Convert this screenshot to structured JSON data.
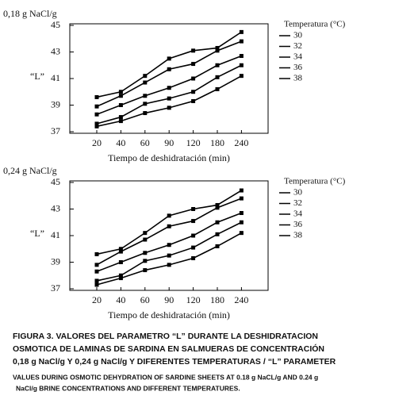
{
  "chart_data": [
    {
      "type": "line",
      "title": "0,18 g NaCl/g",
      "ylabel": "“L”",
      "xlabel": "Tiempo de deshidratación (min)",
      "legend_title": "Temperatura (°C)",
      "categories": [
        "20",
        "40",
        "60",
        "90",
        "120",
        "180",
        "240"
      ],
      "ylim": [
        37,
        45
      ],
      "yticks": [
        37,
        39,
        41,
        43,
        45
      ],
      "series": [
        {
          "name": "30",
          "color": "#000000",
          "values": [
            39.6,
            40.0,
            41.2,
            42.5,
            43.1,
            43.3,
            44.5
          ]
        },
        {
          "name": "32",
          "color": "#000000",
          "values": [
            38.9,
            39.7,
            40.7,
            41.7,
            42.1,
            43.1,
            43.8
          ]
        },
        {
          "name": "34",
          "color": "#000000",
          "values": [
            38.3,
            39.0,
            39.7,
            40.3,
            41.0,
            42.0,
            42.7
          ]
        },
        {
          "name": "36",
          "color": "#000000",
          "values": [
            37.6,
            38.1,
            39.1,
            39.5,
            40.0,
            41.1,
            42.0
          ]
        },
        {
          "name": "38",
          "color": "#000000",
          "values": [
            37.4,
            37.8,
            38.4,
            38.8,
            39.3,
            40.2,
            41.2
          ]
        }
      ]
    },
    {
      "type": "line",
      "title": "0,24 g NaCl/g",
      "ylabel": "“L”",
      "xlabel": "Tiempo de deshidratación (min)",
      "legend_title": "Temperatura (°C)",
      "categories": [
        "20",
        "40",
        "60",
        "90",
        "120",
        "180",
        "240"
      ],
      "ylim": [
        37,
        45
      ],
      "yticks": [
        37,
        39,
        41,
        43,
        45
      ],
      "series": [
        {
          "name": "30",
          "color": "#000000",
          "values": [
            39.6,
            40.0,
            41.2,
            42.5,
            43.0,
            43.3,
            44.4
          ]
        },
        {
          "name": "32",
          "color": "#000000",
          "values": [
            38.8,
            39.8,
            40.7,
            41.7,
            42.1,
            43.1,
            43.8
          ]
        },
        {
          "name": "34",
          "color": "#000000",
          "values": [
            38.3,
            39.0,
            39.7,
            40.3,
            41.0,
            42.0,
            42.7
          ]
        },
        {
          "name": "36",
          "color": "#000000",
          "values": [
            37.6,
            38.0,
            39.1,
            39.5,
            40.1,
            41.1,
            42.0
          ]
        },
        {
          "name": "38",
          "color": "#000000",
          "values": [
            37.3,
            37.8,
            38.4,
            38.8,
            39.3,
            40.2,
            41.2
          ]
        }
      ]
    }
  ],
  "caption": {
    "lines": [
      "FIGURA 3. VALORES DEL PARAMETRO “L” DURANTE LA DESHIDRATACION",
      "OSMOTICA DE LAMINAS DE SARDINA  EN SALMUERAS DE CONCENTRACIÓN",
      "0,18 g NaCl/g Y 0,24 g NaCl/g  Y DIFERENTES TEMPERATURAS / “L” PARAMETER",
      "VALUES DURING OSMOTIC DEHYDRATION OF SARDINE SHEETS AT 0.18 g NaCL/g AND 0.24 g",
      "NaCl/g BRINE CONCENTRATIONS AND  DIFFERENT TEMPERATURES."
    ]
  }
}
